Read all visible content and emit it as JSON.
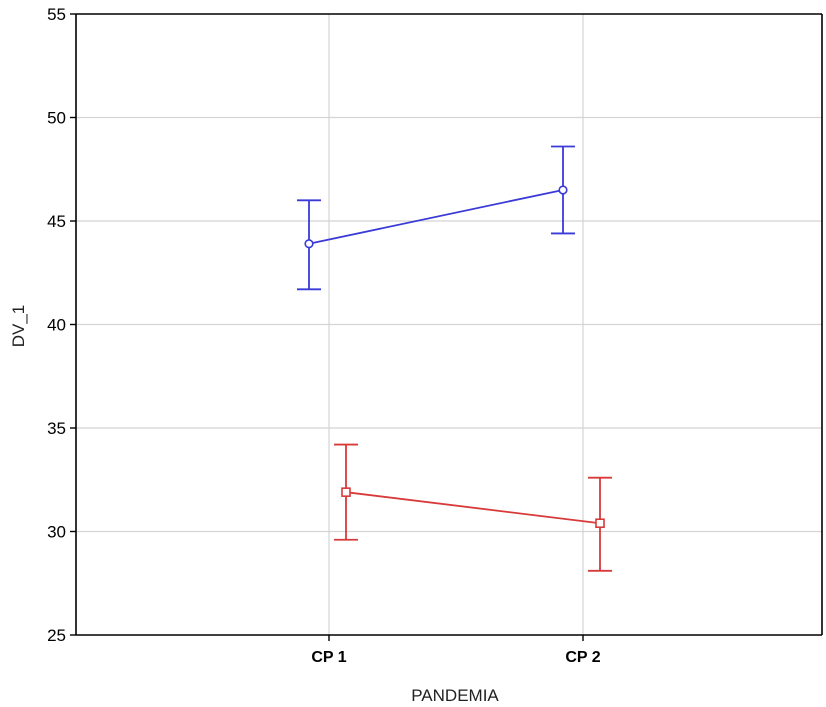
{
  "chart_data": {
    "type": "line",
    "title": "",
    "xlabel": "PANDEMIA",
    "ylabel": "DV_1",
    "categories": [
      "CP 1",
      "CP 2"
    ],
    "ylim": [
      25,
      55
    ],
    "yticks": [
      25,
      30,
      35,
      40,
      45,
      50,
      55
    ],
    "grid": true,
    "legend": "none",
    "error_bars": true,
    "series": [
      {
        "color": "#3a3ad8",
        "marker": "circle",
        "values": [
          43.9,
          46.5
        ],
        "lower": [
          41.7,
          44.4
        ],
        "upper": [
          46.0,
          48.6
        ]
      },
      {
        "color": "#d83a3a",
        "marker": "square",
        "values": [
          31.9,
          30.4
        ],
        "lower": [
          29.6,
          28.1
        ],
        "upper": [
          34.2,
          32.6
        ]
      }
    ]
  }
}
